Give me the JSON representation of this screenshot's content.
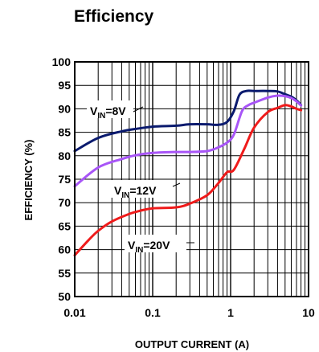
{
  "chart_data": {
    "type": "line",
    "title": "Efficiency",
    "xlabel": "OUTPUT CURRENT (A)",
    "ylabel": "EFFICIENCY (%)",
    "xscale": "log",
    "xlim": [
      0.01,
      10
    ],
    "ylim": [
      50,
      100
    ],
    "grid": true,
    "xtick_labels": [
      "0.01",
      "0.1",
      "1",
      "10"
    ],
    "ytick_labels": [
      "50",
      "55",
      "60",
      "65",
      "70",
      "75",
      "80",
      "85",
      "90",
      "95",
      "100"
    ],
    "series": [
      {
        "name": "VIN=8V",
        "label_prefix": "V",
        "label_sub": "IN",
        "label_suffix": "=8V",
        "color": "#0a1a6e",
        "x": [
          0.01,
          0.02,
          0.04,
          0.06,
          0.1,
          0.2,
          0.3,
          0.5,
          0.7,
          0.9,
          1.1,
          1.3,
          1.6,
          2.0,
          3.0,
          4.0,
          5.0,
          6.0,
          7.0,
          8.0
        ],
        "y": [
          81.0,
          83.8,
          85.2,
          85.7,
          86.2,
          86.4,
          86.7,
          86.7,
          86.6,
          87.2,
          89.5,
          93.0,
          93.8,
          93.8,
          93.8,
          93.7,
          93.1,
          92.6,
          91.8,
          90.8
        ]
      },
      {
        "name": "VIN=12V",
        "label_prefix": "V",
        "label_sub": "IN",
        "label_suffix": "=12V",
        "color": "#a855f7",
        "x": [
          0.01,
          0.02,
          0.04,
          0.06,
          0.1,
          0.2,
          0.3,
          0.5,
          0.7,
          0.9,
          1.1,
          1.4,
          1.7,
          2.0,
          3.0,
          4.0,
          5.0,
          6.0,
          7.0,
          8.0
        ],
        "y": [
          73.5,
          77.5,
          79.3,
          80.1,
          80.6,
          80.8,
          80.8,
          81.0,
          81.8,
          82.8,
          84.5,
          89.5,
          90.8,
          91.3,
          92.4,
          92.8,
          92.7,
          92.3,
          91.6,
          90.7
        ]
      },
      {
        "name": "VIN=20V",
        "label_prefix": "V",
        "label_sub": "IN",
        "label_suffix": "=20V",
        "color": "#ef1b1b",
        "x": [
          0.01,
          0.015,
          0.02,
          0.03,
          0.05,
          0.07,
          0.1,
          0.2,
          0.3,
          0.5,
          0.7,
          0.9,
          1.1,
          1.5,
          2.0,
          3.0,
          4.0,
          5.0,
          6.0,
          7.0,
          8.0
        ],
        "y": [
          58.8,
          62.0,
          64.0,
          66.0,
          67.6,
          68.3,
          68.8,
          69.0,
          69.8,
          71.6,
          74.2,
          76.5,
          77.0,
          81.5,
          86.0,
          89.3,
          90.2,
          90.8,
          90.5,
          90.0,
          89.7
        ]
      }
    ]
  }
}
